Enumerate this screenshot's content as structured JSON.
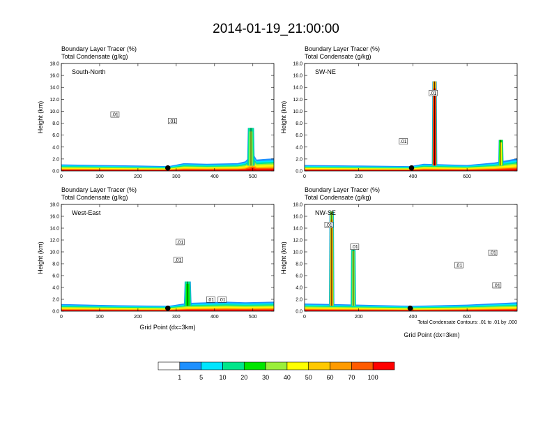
{
  "title": "2014-01-19_21:00:00",
  "chart_data": [
    {
      "type": "area",
      "name": "South-North",
      "subtitle_1": "Boundary Layer Tracer    (%)",
      "subtitle_2": "Total Condensate    (g/kg)",
      "xlabel": "",
      "ylabel": "Height (km)",
      "xlim": [
        0,
        555
      ],
      "ylim": [
        0,
        18
      ],
      "xticks": [
        0,
        100,
        200,
        300,
        400,
        500
      ],
      "yticks": [
        "0.0",
        "2.0",
        "4.0",
        "6.0",
        "8.0",
        "10.0",
        "12.0",
        "14.0",
        "16.0",
        "18.0"
      ],
      "pbl_tracer_top_km": [
        [
          0,
          1.1
        ],
        [
          100,
          1.0
        ],
        [
          200,
          0.9
        ],
        [
          280,
          0.8
        ],
        [
          320,
          1.3
        ],
        [
          380,
          1.2
        ],
        [
          460,
          1.3
        ],
        [
          480,
          1.6
        ],
        [
          500,
          3.0
        ],
        [
          510,
          1.9
        ],
        [
          530,
          2.0
        ],
        [
          555,
          2.1
        ]
      ],
      "deep_tracer_columns": [
        {
          "x": 495,
          "top_km": 7.2,
          "max_pct": 30
        }
      ],
      "marker_x": 278,
      "contour_labels": [
        {
          "text": ".01",
          "x": 140,
          "y": 9.4
        },
        {
          "text": ".01",
          "x": 290,
          "y": 8.3
        }
      ]
    },
    {
      "type": "area",
      "name": "SW-NE",
      "subtitle_1": "Boundary Layer Tracer    (%)",
      "subtitle_2": "Total Condensate    (g/kg)",
      "xlabel": "",
      "ylabel": "Height (km)",
      "xlim": [
        0,
        785
      ],
      "ylim": [
        0,
        18
      ],
      "xticks": [
        0,
        200,
        400,
        600
      ],
      "yticks": [
        "0.0",
        "2.0",
        "4.0",
        "6.0",
        "8.0",
        "10.0",
        "12.0",
        "14.0",
        "16.0",
        "18.0"
      ],
      "pbl_tracer_top_km": [
        [
          0,
          1.0
        ],
        [
          200,
          0.9
        ],
        [
          390,
          0.8
        ],
        [
          440,
          1.2
        ],
        [
          520,
          1.1
        ],
        [
          600,
          1.0
        ],
        [
          700,
          1.4
        ],
        [
          785,
          2.1
        ]
      ],
      "deep_tracer_columns": [
        {
          "x": 480,
          "top_km": 15.0,
          "max_pct": 100
        },
        {
          "x": 725,
          "top_km": 5.2,
          "max_pct": 40
        }
      ],
      "marker_x": 395,
      "contour_labels": [
        {
          "text": ".01",
          "x": 475,
          "y": 13.0
        },
        {
          "text": ".01",
          "x": 365,
          "y": 4.9
        }
      ]
    },
    {
      "type": "area",
      "name": "West-East",
      "subtitle_1": "Boundary Layer Tracer    (%)",
      "subtitle_2": "Total Condensate    (g/kg)",
      "xlabel": "Grid Point (dx=3km)",
      "ylabel": "Height (km)",
      "xlim": [
        0,
        555
      ],
      "ylim": [
        0,
        18
      ],
      "xticks": [
        0,
        100,
        200,
        300,
        400,
        500
      ],
      "yticks": [
        "0.0",
        "2.0",
        "4.0",
        "6.0",
        "8.0",
        "10.0",
        "12.0",
        "14.0",
        "16.0",
        "18.0"
      ],
      "pbl_tracer_top_km": [
        [
          0,
          1.2
        ],
        [
          150,
          1.0
        ],
        [
          280,
          0.9
        ],
        [
          330,
          1.4
        ],
        [
          380,
          1.5
        ],
        [
          430,
          1.6
        ],
        [
          480,
          1.5
        ],
        [
          555,
          1.6
        ]
      ],
      "deep_tracer_columns": [
        {
          "x": 330,
          "top_km": 5.0,
          "max_pct": 20
        }
      ],
      "marker_x": 278,
      "contour_labels": [
        {
          "text": ".01",
          "x": 310,
          "y": 11.6
        },
        {
          "text": ".01",
          "x": 305,
          "y": 8.6
        },
        {
          "text": ".01",
          "x": 390,
          "y": 1.9
        },
        {
          "text": ".01",
          "x": 420,
          "y": 1.9
        }
      ]
    },
    {
      "type": "area",
      "name": "NW-SE",
      "subtitle_1": "Boundary Layer Tracer    (%)",
      "subtitle_2": "Total Condensate    (g/kg)",
      "xlabel": "Grid Point (dx=3km)",
      "ylabel": "Height (km)",
      "xlim": [
        0,
        785
      ],
      "ylim": [
        0,
        18
      ],
      "xticks": [
        0,
        200,
        400,
        600
      ],
      "yticks": [
        "0.0",
        "2.0",
        "4.0",
        "6.0",
        "8.0",
        "10.0",
        "12.0",
        "14.0",
        "16.0",
        "18.0"
      ],
      "pbl_tracer_top_km": [
        [
          0,
          1.3
        ],
        [
          100,
          1.2
        ],
        [
          200,
          1.1
        ],
        [
          400,
          0.9
        ],
        [
          600,
          1.1
        ],
        [
          785,
          1.5
        ]
      ],
      "deep_tracer_columns": [
        {
          "x": 100,
          "top_km": 16.8,
          "max_pct": 60
        },
        {
          "x": 180,
          "top_km": 11.0,
          "max_pct": 30
        }
      ],
      "marker_x": 390,
      "contour_labels": [
        {
          "text": ".01",
          "x": 90,
          "y": 14.5
        },
        {
          "text": ".01",
          "x": 185,
          "y": 10.8
        },
        {
          "text": ".01",
          "x": 570,
          "y": 7.7
        },
        {
          "text": ".01",
          "x": 695,
          "y": 9.8
        },
        {
          "text": ".01",
          "x": 710,
          "y": 4.3
        }
      ],
      "footnote": "Total Condensate Contours: .01 to .01 by .000"
    }
  ],
  "colorbar": {
    "levels": [
      "1",
      "5",
      "10",
      "20",
      "30",
      "40",
      "50",
      "60",
      "70",
      "100"
    ],
    "colors": [
      "#ffffff",
      "#1e90ff",
      "#00e5ff",
      "#00e68a",
      "#00e600",
      "#9aef3a",
      "#ffff00",
      "#ffc800",
      "#ff9a00",
      "#ff5a00",
      "#ff0000"
    ]
  }
}
